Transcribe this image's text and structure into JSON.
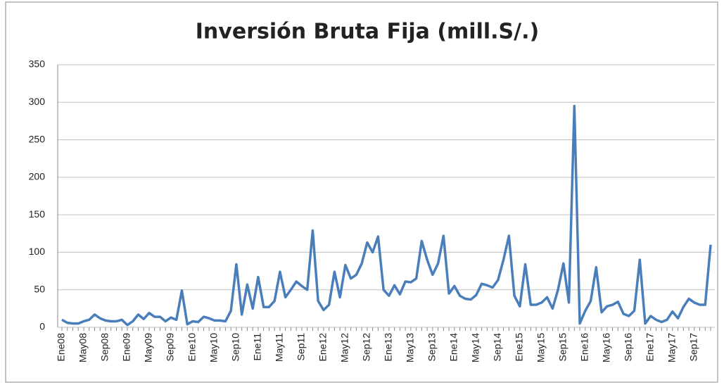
{
  "chart_data": {
    "type": "line",
    "title": "Inversión Bruta Fija (mill.S/.)",
    "categories": [
      "Ene08",
      null,
      null,
      null,
      "May08",
      null,
      null,
      null,
      "Sep08",
      null,
      null,
      null,
      "Ene09",
      null,
      null,
      null,
      "May09",
      null,
      null,
      null,
      "Sep09",
      null,
      null,
      null,
      "Ene10",
      null,
      null,
      null,
      "May10",
      null,
      null,
      null,
      "Sep10",
      null,
      null,
      null,
      "Ene11",
      null,
      null,
      null,
      "May11",
      null,
      null,
      null,
      "Sep11",
      null,
      null,
      null,
      "Ene12",
      null,
      null,
      null,
      "May12",
      null,
      null,
      null,
      "Sep12",
      null,
      null,
      null,
      "Ene13",
      null,
      null,
      null,
      "May13",
      null,
      null,
      null,
      "Sep13",
      null,
      null,
      null,
      "Ene14",
      null,
      null,
      null,
      "May14",
      null,
      null,
      null,
      "Sep14",
      null,
      null,
      null,
      "Ene15",
      null,
      null,
      null,
      "May15",
      null,
      null,
      null,
      "Sep15",
      null,
      null,
      null,
      "Ene16",
      null,
      null,
      null,
      "May16",
      null,
      null,
      null,
      "Sep16",
      null,
      null,
      null,
      "Ene17",
      null,
      null,
      null,
      "May17",
      null,
      null,
      null,
      "Sep17",
      null,
      null,
      null
    ],
    "values": [
      10,
      6,
      5,
      5,
      8,
      10,
      17,
      12,
      9,
      8,
      8,
      10,
      3,
      8,
      17,
      11,
      19,
      14,
      14,
      8,
      13,
      10,
      49,
      4,
      8,
      7,
      14,
      12,
      9,
      9,
      8,
      22,
      84,
      17,
      57,
      25,
      67,
      27,
      27,
      35,
      74,
      40,
      50,
      61,
      55,
      50,
      129,
      35,
      23,
      30,
      74,
      40,
      83,
      65,
      70,
      85,
      113,
      100,
      121,
      50,
      42,
      56,
      44,
      61,
      60,
      65,
      115,
      90,
      70,
      85,
      122,
      45,
      55,
      42,
      38,
      37,
      43,
      58,
      56,
      53,
      63,
      90,
      122,
      42,
      28,
      84,
      30,
      30,
      33,
      40,
      25,
      50,
      85,
      33,
      295,
      5,
      22,
      35,
      80,
      20,
      28,
      30,
      34,
      18,
      15,
      22,
      90,
      5,
      15,
      10,
      7,
      10,
      21,
      12,
      27,
      38,
      33,
      30,
      30,
      110
    ],
    "color": "#4a7ebb",
    "ylim": [
      0,
      350
    ],
    "yticks": [
      0,
      50,
      100,
      150,
      200,
      250,
      300,
      350
    ],
    "grid": true
  }
}
